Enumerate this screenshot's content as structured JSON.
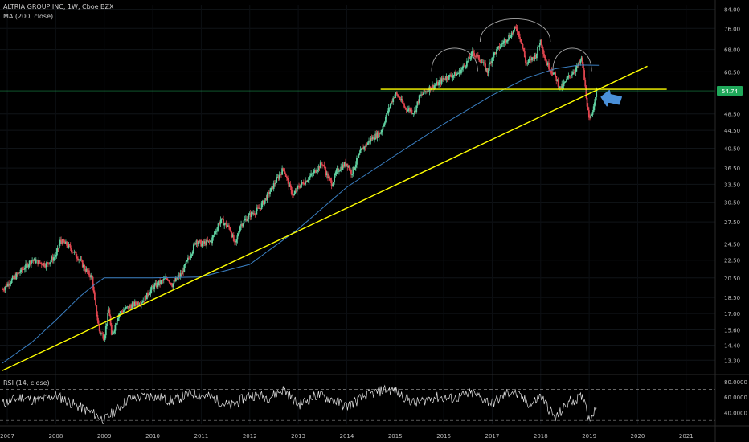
{
  "header": {
    "symbol_line": "ALTRIA GROUP INC, 1W, Cboe BZX",
    "ma_line": "MA (200, close)"
  },
  "rsi_header": "RSI (14, close)",
  "price_badge": "54.74",
  "colors": {
    "background": "#000000",
    "candle_up": "#5fd0a0",
    "candle_down": "#e0454f",
    "ma_line": "#3a7fc2",
    "trendline": "#ffff00",
    "arc": "#aaaaaa",
    "arrow": "#4a90d9",
    "rsi_line": "#e6e6e6",
    "badge_bg": "#1fa85a",
    "level_line": "#1fa85a"
  },
  "chart_data": [
    {
      "type": "line",
      "title": "ALTRIA GROUP INC, 1W, Cboe BZX",
      "y_ticks": [
        "84.00",
        "76.00",
        "68.00",
        "60.50",
        "54.74",
        "48.50",
        "44.50",
        "40.50",
        "36.50",
        "33.50",
        "30.50",
        "27.50",
        "24.50",
        "22.50",
        "20.50",
        "18.50",
        "17.00",
        "15.60",
        "14.40",
        "13.30"
      ],
      "x_ticks": [
        "2007",
        "2008",
        "2009",
        "2010",
        "2011",
        "2012",
        "2013",
        "2014",
        "2015",
        "2016",
        "2017",
        "2018",
        "2019",
        "2020",
        "2021"
      ],
      "y_scale": "log",
      "ylim": [
        12.5,
        86
      ],
      "xlim": [
        2006.85,
        2021.6
      ],
      "series": [
        {
          "name": "MA (200, close)",
          "points": [
            [
              2006.9,
              13.1
            ],
            [
              2007.5,
              14.6
            ],
            [
              2008.0,
              16.4
            ],
            [
              2008.5,
              18.6
            ],
            [
              2008.8,
              19.8
            ],
            [
              2009.0,
              20.5
            ],
            [
              2010.0,
              20.5
            ],
            [
              2011.0,
              20.6
            ],
            [
              2012.0,
              22.0
            ],
            [
              2013.0,
              26.5
            ],
            [
              2014.0,
              33.0
            ],
            [
              2015.0,
              39.0
            ],
            [
              2016.0,
              46.0
            ],
            [
              2017.0,
              53.5
            ],
            [
              2017.7,
              58.5
            ],
            [
              2018.3,
              61.5
            ],
            [
              2018.8,
              62.7
            ],
            [
              2019.2,
              62.6
            ]
          ]
        },
        {
          "name": "Price (weekly close)",
          "points": [
            [
              2006.9,
              19.3
            ],
            [
              2007.2,
              20.8
            ],
            [
              2007.5,
              22.5
            ],
            [
              2007.8,
              22.0
            ],
            [
              2008.0,
              23.0
            ],
            [
              2008.1,
              25.0
            ],
            [
              2008.3,
              24.0
            ],
            [
              2008.5,
              22.5
            ],
            [
              2008.6,
              21.5
            ],
            [
              2008.75,
              20.5
            ],
            [
              2008.8,
              18.2
            ],
            [
              2008.9,
              15.5
            ],
            [
              2009.0,
              15.0
            ],
            [
              2009.1,
              17.5
            ],
            [
              2009.15,
              15.0
            ],
            [
              2009.3,
              17.0
            ],
            [
              2009.5,
              17.6
            ],
            [
              2009.8,
              18.2
            ],
            [
              2010.0,
              19.5
            ],
            [
              2010.3,
              20.5
            ],
            [
              2010.4,
              19.8
            ],
            [
              2010.6,
              21.0
            ],
            [
              2010.8,
              23.5
            ],
            [
              2010.9,
              25.0
            ],
            [
              2011.0,
              24.5
            ],
            [
              2011.2,
              24.8
            ],
            [
              2011.4,
              27.8
            ],
            [
              2011.6,
              26.5
            ],
            [
              2011.7,
              24.2
            ],
            [
              2011.8,
              27.0
            ],
            [
              2012.0,
              28.5
            ],
            [
              2012.2,
              29.5
            ],
            [
              2012.4,
              32.0
            ],
            [
              2012.6,
              35.0
            ],
            [
              2012.7,
              36.5
            ],
            [
              2012.8,
              33.5
            ],
            [
              2012.9,
              31.5
            ],
            [
              2013.0,
              33.0
            ],
            [
              2013.2,
              34.5
            ],
            [
              2013.4,
              36.5
            ],
            [
              2013.5,
              37.5
            ],
            [
              2013.6,
              35.0
            ],
            [
              2013.7,
              33.5
            ],
            [
              2013.8,
              36.0
            ],
            [
              2014.0,
              37.5
            ],
            [
              2014.1,
              35.5
            ],
            [
              2014.3,
              40.0
            ],
            [
              2014.5,
              42.5
            ],
            [
              2014.7,
              44.0
            ],
            [
              2014.8,
              47.5
            ],
            [
              2014.9,
              51.0
            ],
            [
              2015.0,
              54.0
            ],
            [
              2015.1,
              52.5
            ],
            [
              2015.2,
              50.0
            ],
            [
              2015.4,
              49.0
            ],
            [
              2015.5,
              53.0
            ],
            [
              2015.7,
              55.5
            ],
            [
              2015.9,
              57.0
            ],
            [
              2016.0,
              58.5
            ],
            [
              2016.3,
              60.0
            ],
            [
              2016.5,
              64.0
            ],
            [
              2016.6,
              67.0
            ],
            [
              2016.8,
              63.5
            ],
            [
              2016.9,
              60.5
            ],
            [
              2017.0,
              65.5
            ],
            [
              2017.2,
              70.0
            ],
            [
              2017.4,
              74.0
            ],
            [
              2017.5,
              76.5
            ],
            [
              2017.6,
              71.0
            ],
            [
              2017.7,
              63.0
            ],
            [
              2017.9,
              66.0
            ],
            [
              2018.0,
              71.5
            ],
            [
              2018.1,
              64.0
            ],
            [
              2018.2,
              61.5
            ],
            [
              2018.3,
              59.0
            ],
            [
              2018.4,
              55.5
            ],
            [
              2018.5,
              57.0
            ],
            [
              2018.6,
              59.5
            ],
            [
              2018.7,
              61.0
            ],
            [
              2018.8,
              63.0
            ],
            [
              2018.85,
              64.8
            ],
            [
              2018.9,
              58.0
            ],
            [
              2018.95,
              52.0
            ],
            [
              2019.0,
              46.5
            ],
            [
              2019.05,
              48.0
            ],
            [
              2019.1,
              51.5
            ],
            [
              2019.15,
              54.74
            ]
          ]
        },
        {
          "name": "Trendline",
          "points": [
            [
              2006.9,
              12.6
            ],
            [
              2020.2,
              62.3
            ]
          ]
        },
        {
          "name": "Support level",
          "points": [
            [
              2014.7,
              55.2
            ],
            [
              2020.6,
              55.2
            ]
          ]
        }
      ]
    },
    {
      "type": "line",
      "title": "RSI (14, close)",
      "y_ticks": [
        "80.0000",
        "60.0000",
        "40.0000"
      ],
      "ylim": [
        25,
        85
      ],
      "bands": [
        70,
        30
      ],
      "series": [
        {
          "name": "RSI (14, close)",
          "x": [
            2006.9,
            2007.3,
            2007.6,
            2008.0,
            2008.4,
            2008.8,
            2009.0,
            2009.5,
            2010.0,
            2010.4,
            2010.8,
            2011.2,
            2011.6,
            2012.0,
            2012.4,
            2012.7,
            2013.0,
            2013.4,
            2013.7,
            2014.0,
            2014.4,
            2014.8,
            2015.0,
            2015.4,
            2015.8,
            2016.2,
            2016.6,
            2017.0,
            2017.4,
            2017.8,
            2018.0,
            2018.3,
            2018.6,
            2018.9,
            2019.0,
            2019.15
          ],
          "values": [
            52,
            60,
            55,
            62,
            50,
            38,
            30,
            58,
            62,
            55,
            65,
            60,
            48,
            63,
            60,
            70,
            50,
            63,
            57,
            48,
            62,
            70,
            68,
            52,
            60,
            58,
            65,
            52,
            68,
            50,
            62,
            32,
            55,
            60,
            30,
            50
          ]
        }
      ]
    }
  ]
}
